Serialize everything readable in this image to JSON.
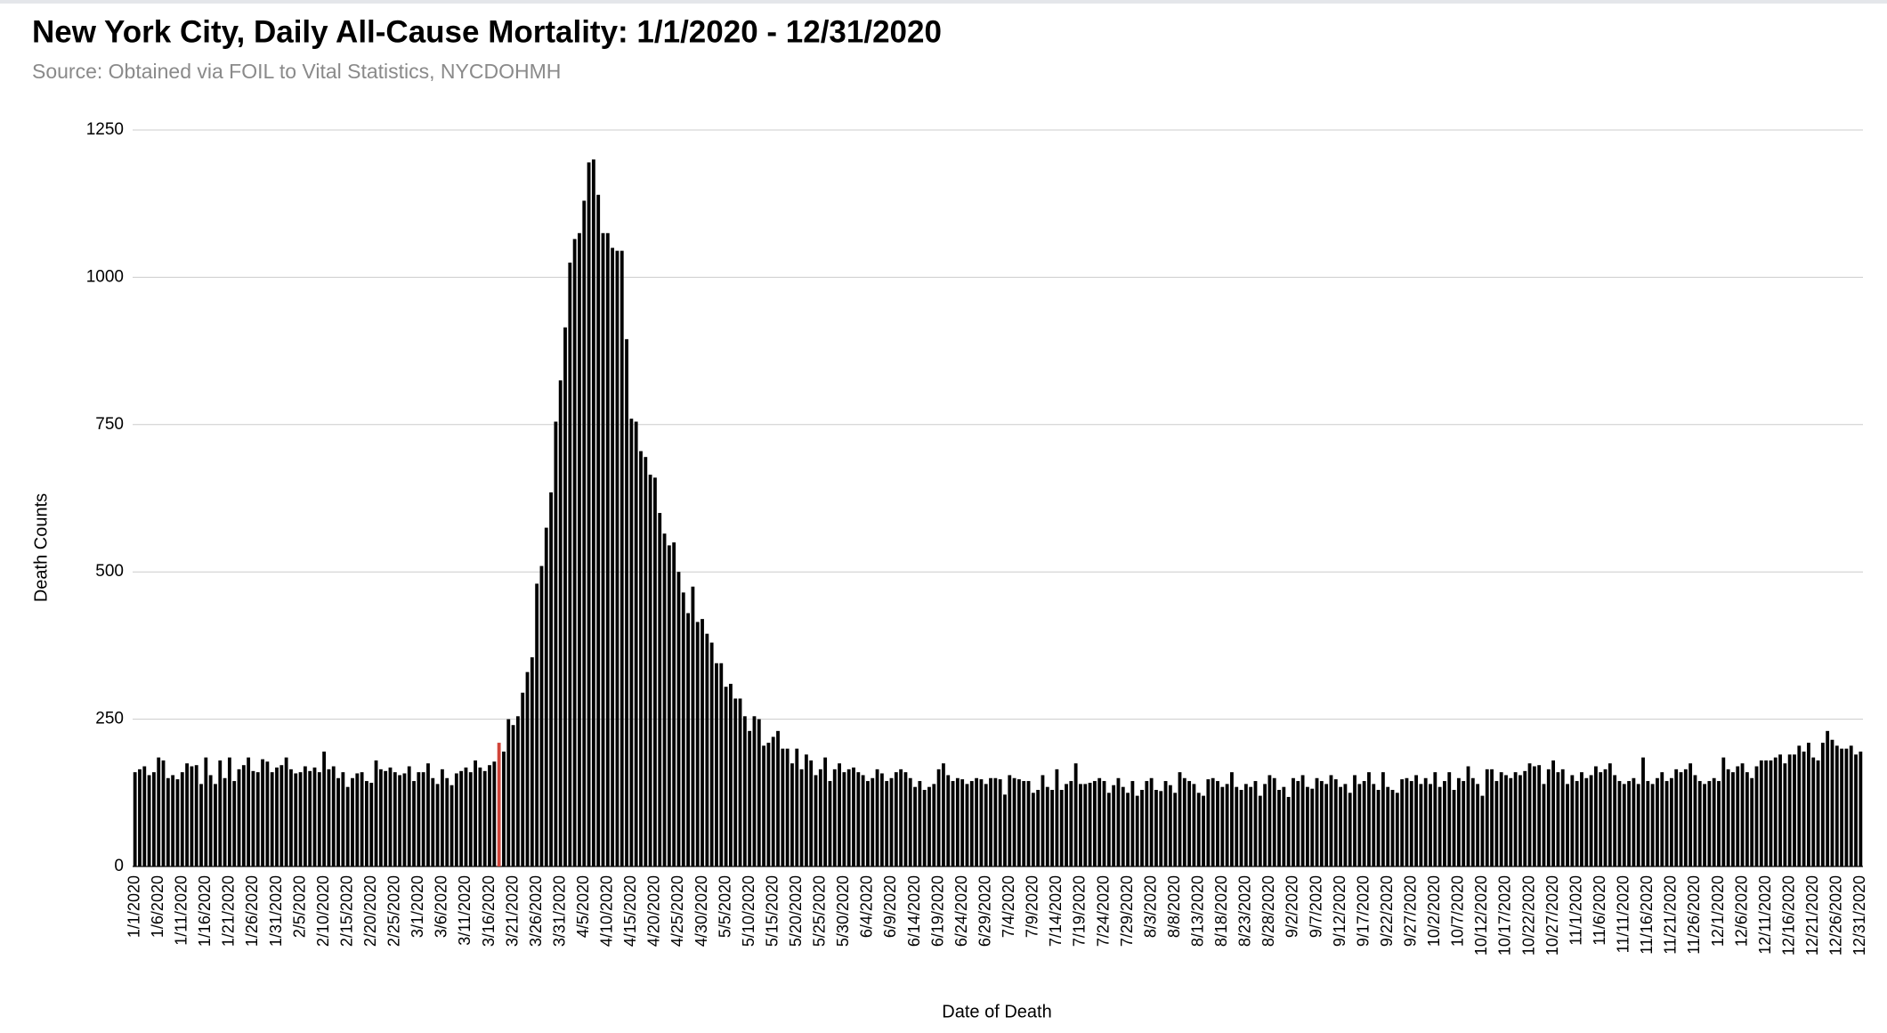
{
  "chart_data": {
    "type": "bar",
    "title": "New York City, Daily All-Cause Mortality: 1/1/2020 - 12/31/2020",
    "subtitle": "Source: Obtained via FOIL to Vital Statistics, NYCDOHMH",
    "x_label": "Date of Death",
    "y_label": "Death Counts",
    "color": "#000000",
    "highlight": {
      "index": 77,
      "color": "#d0453a"
    },
    "ylim": [
      0,
      1250
    ],
    "yticks": [
      0,
      250,
      500,
      750,
      1000,
      1250
    ],
    "grid": true,
    "categories": [
      "1/1/2020",
      null,
      null,
      null,
      null,
      "1/6/2020",
      null,
      null,
      null,
      null,
      "1/11/2020",
      null,
      null,
      null,
      null,
      "1/16/2020",
      null,
      null,
      null,
      null,
      "1/21/2020",
      null,
      null,
      null,
      null,
      "1/26/2020",
      null,
      null,
      null,
      null,
      "1/31/2020",
      null,
      null,
      null,
      null,
      "2/5/2020",
      null,
      null,
      null,
      null,
      "2/10/2020",
      null,
      null,
      null,
      null,
      "2/15/2020",
      null,
      null,
      null,
      null,
      "2/20/2020",
      null,
      null,
      null,
      null,
      "2/25/2020",
      null,
      null,
      null,
      null,
      "3/1/2020",
      null,
      null,
      null,
      null,
      "3/6/2020",
      null,
      null,
      null,
      null,
      "3/11/2020",
      null,
      null,
      null,
      null,
      "3/16/2020",
      null,
      null,
      null,
      null,
      "3/21/2020",
      null,
      null,
      null,
      null,
      "3/26/2020",
      null,
      null,
      null,
      null,
      "3/31/2020",
      null,
      null,
      null,
      null,
      "4/5/2020",
      null,
      null,
      null,
      null,
      "4/10/2020",
      null,
      null,
      null,
      null,
      "4/15/2020",
      null,
      null,
      null,
      null,
      "4/20/2020",
      null,
      null,
      null,
      null,
      "4/25/2020",
      null,
      null,
      null,
      null,
      "4/30/2020",
      null,
      null,
      null,
      null,
      "5/5/2020",
      null,
      null,
      null,
      null,
      "5/10/2020",
      null,
      null,
      null,
      null,
      "5/15/2020",
      null,
      null,
      null,
      null,
      "5/20/2020",
      null,
      null,
      null,
      null,
      "5/25/2020",
      null,
      null,
      null,
      null,
      "5/30/2020",
      null,
      null,
      null,
      null,
      "6/4/2020",
      null,
      null,
      null,
      null,
      "6/9/2020",
      null,
      null,
      null,
      null,
      "6/14/2020",
      null,
      null,
      null,
      null,
      "6/19/2020",
      null,
      null,
      null,
      null,
      "6/24/2020",
      null,
      null,
      null,
      null,
      "6/29/2020",
      null,
      null,
      null,
      null,
      "7/4/2020",
      null,
      null,
      null,
      null,
      "7/9/2020",
      null,
      null,
      null,
      null,
      "7/14/2020",
      null,
      null,
      null,
      null,
      "7/19/2020",
      null,
      null,
      null,
      null,
      "7/24/2020",
      null,
      null,
      null,
      null,
      "7/29/2020",
      null,
      null,
      null,
      null,
      "8/3/2020",
      null,
      null,
      null,
      null,
      "8/8/2020",
      null,
      null,
      null,
      null,
      "8/13/2020",
      null,
      null,
      null,
      null,
      "8/18/2020",
      null,
      null,
      null,
      null,
      "8/23/2020",
      null,
      null,
      null,
      null,
      "8/28/2020",
      null,
      null,
      null,
      null,
      "9/2/2020",
      null,
      null,
      null,
      null,
      "9/7/2020",
      null,
      null,
      null,
      null,
      "9/12/2020",
      null,
      null,
      null,
      null,
      "9/17/2020",
      null,
      null,
      null,
      null,
      "9/22/2020",
      null,
      null,
      null,
      null,
      "9/27/2020",
      null,
      null,
      null,
      null,
      "10/2/2020",
      null,
      null,
      null,
      null,
      "10/7/2020",
      null,
      null,
      null,
      null,
      "10/12/2020",
      null,
      null,
      null,
      null,
      "10/17/2020",
      null,
      null,
      null,
      null,
      "10/22/2020",
      null,
      null,
      null,
      null,
      "10/27/2020",
      null,
      null,
      null,
      null,
      "11/1/2020",
      null,
      null,
      null,
      null,
      "11/6/2020",
      null,
      null,
      null,
      null,
      "11/11/2020",
      null,
      null,
      null,
      null,
      "11/16/2020",
      null,
      null,
      null,
      null,
      "11/21/2020",
      null,
      null,
      null,
      null,
      "11/26/2020",
      null,
      null,
      null,
      null,
      "12/1/2020",
      null,
      null,
      null,
      null,
      "12/6/2020",
      null,
      null,
      null,
      null,
      "12/11/2020",
      null,
      null,
      null,
      null,
      "12/16/2020",
      null,
      null,
      null,
      null,
      "12/21/2020",
      null,
      null,
      null,
      null,
      "12/26/2020",
      null,
      null,
      null,
      null,
      "12/31/2020"
    ],
    "values": [
      160,
      165,
      170,
      155,
      160,
      185,
      180,
      150,
      155,
      148,
      160,
      175,
      170,
      172,
      140,
      185,
      155,
      140,
      180,
      150,
      185,
      145,
      165,
      172,
      185,
      162,
      160,
      182,
      178,
      160,
      168,
      172,
      185,
      165,
      158,
      160,
      170,
      162,
      168,
      160,
      195,
      165,
      170,
      150,
      160,
      135,
      150,
      158,
      160,
      145,
      142,
      180,
      165,
      162,
      168,
      160,
      155,
      158,
      170,
      145,
      160,
      160,
      175,
      150,
      140,
      165,
      150,
      138,
      158,
      162,
      168,
      160,
      180,
      168,
      162,
      172,
      178,
      210,
      195,
      250,
      240,
      255,
      295,
      330,
      355,
      480,
      510,
      575,
      635,
      755,
      825,
      915,
      1025,
      1065,
      1075,
      1130,
      1195,
      1200,
      1140,
      1075,
      1075,
      1050,
      1045,
      1045,
      895,
      760,
      755,
      705,
      695,
      665,
      660,
      600,
      565,
      545,
      550,
      500,
      465,
      430,
      475,
      415,
      420,
      395,
      380,
      345,
      345,
      305,
      310,
      285,
      285,
      255,
      230,
      255,
      250,
      205,
      210,
      220,
      230,
      200,
      200,
      175,
      200,
      165,
      190,
      180,
      155,
      165,
      185,
      145,
      165,
      175,
      160,
      165,
      168,
      160,
      155,
      145,
      150,
      165,
      158,
      145,
      150,
      160,
      165,
      160,
      150,
      135,
      145,
      130,
      135,
      140,
      165,
      175,
      155,
      145,
      150,
      148,
      140,
      145,
      150,
      148,
      140,
      150,
      150,
      148,
      122,
      155,
      150,
      148,
      145,
      145,
      125,
      130,
      155,
      135,
      130,
      165,
      130,
      140,
      145,
      175,
      140,
      140,
      142,
      145,
      150,
      145,
      125,
      138,
      150,
      135,
      125,
      145,
      120,
      130,
      145,
      150,
      130,
      128,
      145,
      138,
      125,
      160,
      150,
      145,
      140,
      125,
      120,
      148,
      150,
      145,
      135,
      140,
      160,
      135,
      130,
      140,
      135,
      145,
      120,
      140,
      155,
      150,
      130,
      135,
      118,
      150,
      145,
      155,
      135,
      132,
      150,
      145,
      140,
      155,
      148,
      135,
      140,
      125,
      155,
      140,
      145,
      160,
      140,
      130,
      160,
      135,
      130,
      125,
      148,
      150,
      145,
      155,
      140,
      150,
      140,
      160,
      135,
      145,
      160,
      130,
      150,
      145,
      170,
      150,
      140,
      120,
      165,
      165,
      145,
      160,
      155,
      150,
      160,
      155,
      162,
      175,
      170,
      172,
      140,
      165,
      180,
      160,
      165,
      140,
      155,
      145,
      160,
      150,
      155,
      170,
      160,
      165,
      175,
      155,
      145,
      140,
      145,
      150,
      140,
      185,
      145,
      140,
      150,
      160,
      145,
      150,
      165,
      160,
      165,
      175,
      155,
      145,
      140,
      145,
      150,
      145,
      185,
      165,
      160,
      170,
      175,
      160,
      150,
      170,
      180,
      180,
      180,
      185,
      190,
      175,
      190,
      190,
      205,
      195,
      210,
      185,
      180,
      210,
      230,
      215,
      205,
      200,
      200,
      205,
      190,
      195
    ]
  }
}
